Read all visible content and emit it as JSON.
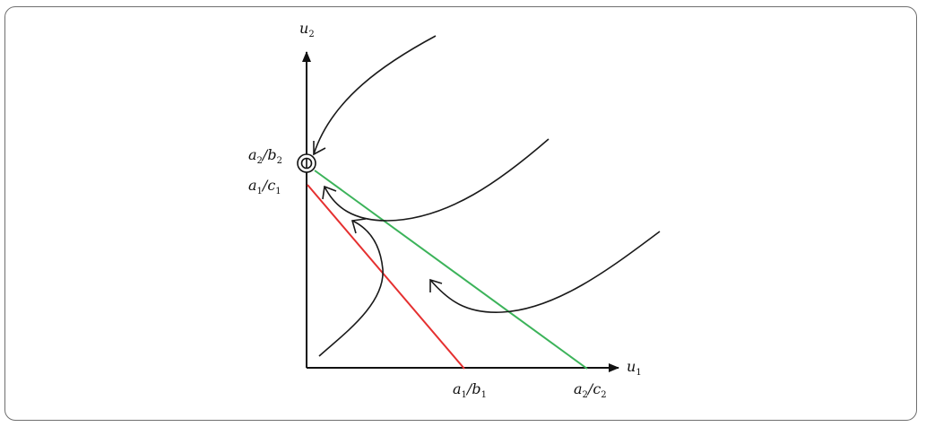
{
  "diagram": {
    "axes": {
      "x": {
        "var": "u",
        "sub": "1"
      },
      "y": {
        "var": "u",
        "sub": "2"
      }
    },
    "intercepts": {
      "y_upper": {
        "num": "a",
        "num_sub": "2",
        "den": "b",
        "den_sub": "2"
      },
      "y_lower": {
        "num": "a",
        "num_sub": "1",
        "den": "c",
        "den_sub": "1"
      },
      "x_left": {
        "num": "a",
        "num_sub": "1",
        "den": "b",
        "den_sub": "1"
      },
      "x_right": {
        "num": "a",
        "num_sub": "2",
        "den": "c",
        "den_sub": "2"
      }
    },
    "nullclines": [
      {
        "color": "#e53030",
        "from": "y_lower",
        "to": "x_left"
      },
      {
        "color": "#3cb35a",
        "from": "y_upper",
        "to": "x_right"
      }
    ],
    "equilibrium": {
      "location": "y_upper",
      "marker": "stable-node-circle"
    },
    "colors": {
      "axis": "#111111",
      "trajectory": "#1a1a1a",
      "red_line": "#e53030",
      "green_line": "#3cb35a"
    }
  }
}
